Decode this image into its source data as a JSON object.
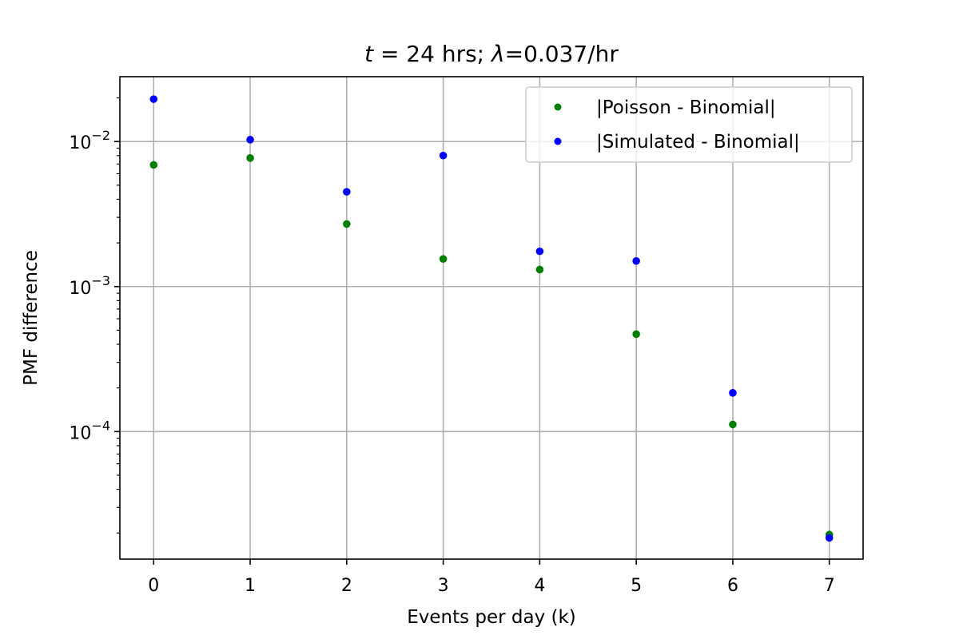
{
  "chart_data": {
    "type": "scatter",
    "title": "t = 24 hrs; λ=0.037/hr",
    "title_parts": {
      "lhs": "t",
      "eq": " = 24 hrs; ",
      "lambda": "λ",
      "rhs": "=0.037/hr"
    },
    "xlabel": "Events per day (k)",
    "ylabel": "PMF difference",
    "x_scale": "linear",
    "y_scale": "log",
    "xlim": [
      -0.35,
      7.35
    ],
    "ylim": [
      1.32e-05,
      0.028
    ],
    "x_ticks": [
      0,
      1,
      2,
      3,
      4,
      5,
      6,
      7
    ],
    "y_major_ticks": [
      {
        "value": 0.0001,
        "base": "10",
        "exp": "−4"
      },
      {
        "value": 0.001,
        "base": "10",
        "exp": "−3"
      },
      {
        "value": 0.01,
        "base": "10",
        "exp": "−2"
      }
    ],
    "grid": true,
    "legend_position": "top-right",
    "x": [
      0,
      1,
      2,
      3,
      4,
      5,
      6,
      7
    ],
    "series": [
      {
        "name": "|Poisson - Binomial|",
        "color": "#008000",
        "marker": "circle",
        "values": [
          0.0069,
          0.0077,
          0.0027,
          0.00155,
          0.00131,
          0.00047,
          0.000112,
          1.95e-05
        ]
      },
      {
        "name": "|Simulated - Binomial|",
        "color": "#0000ff",
        "marker": "circle",
        "values": [
          0.0196,
          0.0103,
          0.0045,
          0.008,
          0.00175,
          0.0015,
          0.000185,
          1.85e-05
        ]
      }
    ]
  }
}
